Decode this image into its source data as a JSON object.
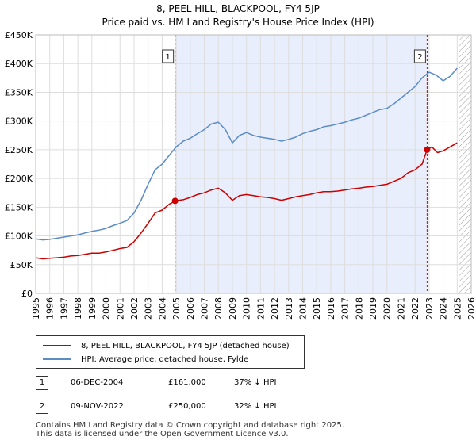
{
  "header": {
    "title": "8, PEEL HILL, BLACKPOOL, FY4 5JP",
    "subtitle": "Price paid vs. HM Land Registry's House Price Index (HPI)"
  },
  "chart_data": {
    "type": "line",
    "title": "8, PEEL HILL, BLACKPOOL, FY4 5JP",
    "subtitle": "Price paid vs. HM Land Registry's House Price Index (HPI)",
    "xlabel": "",
    "ylabel": "",
    "xlim": [
      1995,
      2026
    ],
    "ylim": [
      0,
      450000
    ],
    "yticks": [
      0,
      50000,
      100000,
      150000,
      200000,
      250000,
      300000,
      350000,
      400000,
      450000
    ],
    "ytick_labels": [
      "£0",
      "£50K",
      "£100K",
      "£150K",
      "£200K",
      "£250K",
      "£300K",
      "£350K",
      "£400K",
      "£450K"
    ],
    "xticks": [
      1995,
      1996,
      1997,
      1998,
      1999,
      2000,
      2001,
      2002,
      2003,
      2004,
      2005,
      2006,
      2007,
      2008,
      2009,
      2010,
      2011,
      2012,
      2013,
      2014,
      2015,
      2016,
      2017,
      2018,
      2019,
      2020,
      2021,
      2022,
      2023,
      2024,
      2025,
      2026
    ],
    "xtick_labels": [
      "1995",
      "1996",
      "1997",
      "1998",
      "1999",
      "2000",
      "2001",
      "2002",
      "2003",
      "2004",
      "2005",
      "2006",
      "2007",
      "2008",
      "2009",
      "2010",
      "2011",
      "2012",
      "2013",
      "2014",
      "2015",
      "2016",
      "2017",
      "2018",
      "2019",
      "2020",
      "2021",
      "2022",
      "2023",
      "2024",
      "2025",
      "2026"
    ],
    "grid": true,
    "shaded_period": [
      2004.92,
      2022.86
    ],
    "hatched_after": 2025.1,
    "series": [
      {
        "name": "8, PEEL HILL, BLACKPOOL, FY4 5JP (detached house)",
        "color": "#cc0000",
        "x": [
          1995.0,
          1995.5,
          1996.0,
          1996.5,
          1997.0,
          1997.5,
          1998.0,
          1998.5,
          1999.0,
          1999.5,
          2000.0,
          2000.5,
          2001.0,
          2001.5,
          2002.0,
          2002.5,
          2003.0,
          2003.5,
          2004.0,
          2004.5,
          2004.92,
          2005.5,
          2006.0,
          2006.5,
          2007.0,
          2007.5,
          2008.0,
          2008.5,
          2009.0,
          2009.5,
          2010.0,
          2010.5,
          2011.0,
          2011.5,
          2012.0,
          2012.5,
          2013.0,
          2013.5,
          2014.0,
          2014.5,
          2015.0,
          2015.5,
          2016.0,
          2016.5,
          2017.0,
          2017.5,
          2018.0,
          2018.5,
          2019.0,
          2019.5,
          2020.0,
          2020.5,
          2021.0,
          2021.5,
          2022.0,
          2022.5,
          2022.86,
          2023.2,
          2023.6,
          2024.0,
          2024.5,
          2025.0
        ],
        "values": [
          62000,
          60000,
          61000,
          62000,
          63000,
          65000,
          66000,
          68000,
          70000,
          70000,
          72000,
          75000,
          78000,
          80000,
          90000,
          105000,
          122000,
          140000,
          145000,
          155000,
          161000,
          163000,
          167000,
          172000,
          175000,
          180000,
          183000,
          175000,
          162000,
          170000,
          172000,
          170000,
          168000,
          167000,
          165000,
          162000,
          165000,
          168000,
          170000,
          172000,
          175000,
          177000,
          177000,
          178000,
          180000,
          182000,
          183000,
          185000,
          186000,
          188000,
          190000,
          195000,
          200000,
          210000,
          215000,
          225000,
          250000,
          255000,
          245000,
          248000,
          255000,
          262000
        ]
      },
      {
        "name": "HPI: Average price, detached house, Fylde",
        "color": "#5b8cc6",
        "x": [
          1995.0,
          1995.5,
          1996.0,
          1996.5,
          1997.0,
          1997.5,
          1998.0,
          1998.5,
          1999.0,
          1999.5,
          2000.0,
          2000.5,
          2001.0,
          2001.5,
          2002.0,
          2002.5,
          2003.0,
          2003.5,
          2004.0,
          2004.5,
          2005.0,
          2005.5,
          2006.0,
          2006.5,
          2007.0,
          2007.5,
          2008.0,
          2008.5,
          2009.0,
          2009.5,
          2010.0,
          2010.5,
          2011.0,
          2011.5,
          2012.0,
          2012.5,
          2013.0,
          2013.5,
          2014.0,
          2014.5,
          2015.0,
          2015.5,
          2016.0,
          2016.5,
          2017.0,
          2017.5,
          2018.0,
          2018.5,
          2019.0,
          2019.5,
          2020.0,
          2020.5,
          2021.0,
          2021.5,
          2022.0,
          2022.5,
          2023.0,
          2023.5,
          2024.0,
          2024.5,
          2025.0
        ],
        "values": [
          95000,
          93000,
          94000,
          96000,
          98000,
          100000,
          102000,
          105000,
          108000,
          110000,
          113000,
          118000,
          122000,
          127000,
          140000,
          162000,
          190000,
          215000,
          225000,
          240000,
          255000,
          265000,
          270000,
          278000,
          285000,
          295000,
          298000,
          285000,
          262000,
          275000,
          280000,
          275000,
          272000,
          270000,
          268000,
          265000,
          268000,
          272000,
          278000,
          282000,
          285000,
          290000,
          292000,
          295000,
          298000,
          302000,
          305000,
          310000,
          315000,
          320000,
          322000,
          330000,
          340000,
          350000,
          360000,
          375000,
          385000,
          380000,
          370000,
          378000,
          392000
        ]
      }
    ],
    "markers": [
      {
        "label": "1",
        "x": 2004.92,
        "value": 161000
      },
      {
        "label": "2",
        "x": 2022.86,
        "value": 250000
      }
    ]
  },
  "legend": {
    "items": [
      {
        "label": "8, PEEL HILL, BLACKPOOL, FY4 5JP (detached house)",
        "color": "#cc0000"
      },
      {
        "label": "HPI: Average price, detached house, Fylde",
        "color": "#5b8cc6"
      }
    ]
  },
  "transactions": [
    {
      "num": "1",
      "date": "06-DEC-2004",
      "price": "£161,000",
      "delta": "37% ↓ HPI"
    },
    {
      "num": "2",
      "date": "09-NOV-2022",
      "price": "£250,000",
      "delta": "32% ↓ HPI"
    }
  ],
  "footer": {
    "line1": "Contains HM Land Registry data © Crown copyright and database right 2025.",
    "line2": "This data is licensed under the Open Government Licence v3.0."
  }
}
